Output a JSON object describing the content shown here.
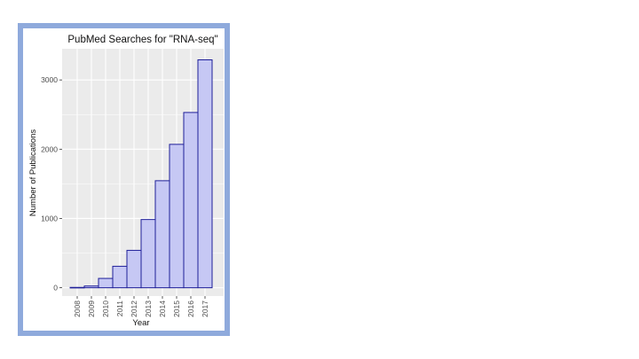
{
  "chart_data": {
    "type": "bar",
    "title": "PubMed Searches for \"RNA-seq\"",
    "xlabel": "Year",
    "ylabel": "Number of Publications",
    "categories": [
      "2008",
      "2009",
      "2010",
      "2011",
      "2012",
      "2013",
      "2014",
      "2015",
      "2016",
      "2017"
    ],
    "values": [
      5,
      25,
      135,
      310,
      540,
      985,
      1545,
      2070,
      2530,
      3290
    ],
    "ylim": [
      -120,
      3450
    ],
    "yticks": [
      0,
      1000,
      2000,
      3000
    ],
    "ytick_labels": [
      "0",
      "1000",
      "2000",
      "3000"
    ],
    "grid": true,
    "legend": "none",
    "colors": {
      "bar_fill": "#c6c8f4",
      "bar_stroke": "#1f1f99",
      "panel_background": "#ebebeb",
      "gridline": "#ffffff",
      "frame_border": "#8faadc"
    }
  }
}
